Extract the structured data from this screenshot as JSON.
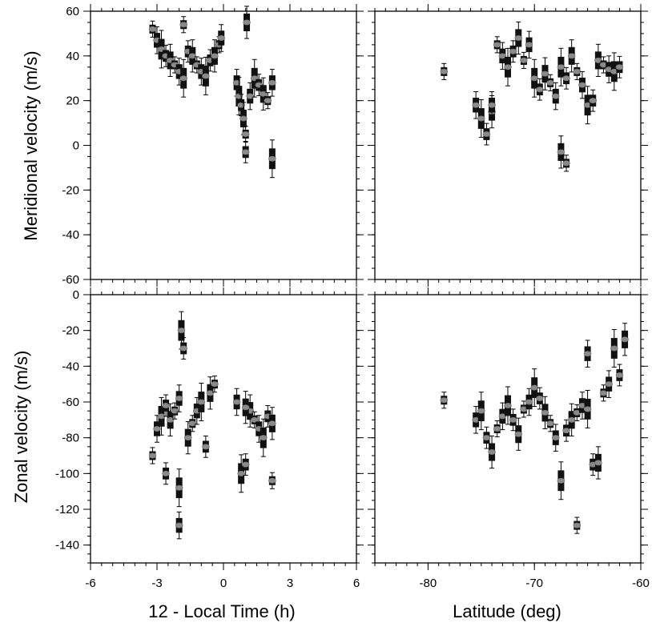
{
  "chart_data": [
    {
      "type": "scatter",
      "panel": "top-left",
      "xlabel": "",
      "ylabel": "Meridional velocity (m/s)",
      "xlim": [
        -6,
        6
      ],
      "ylim": [
        -60,
        60
      ],
      "xticks": [
        -6,
        -3,
        0,
        3,
        6
      ],
      "yticks": [
        -60,
        -40,
        -20,
        0,
        20,
        40,
        60
      ],
      "grid": false,
      "x_tick_labels_shown": false,
      "y_tick_labels_shown": true,
      "series": [
        {
          "values": [
            {
              "x": -3.2,
              "y": 52
            },
            {
              "x": -3.0,
              "y": 47
            },
            {
              "x": -2.8,
              "y": 43
            },
            {
              "x": -2.6,
              "y": 40
            },
            {
              "x": -2.4,
              "y": 38
            },
            {
              "x": -2.2,
              "y": 36
            },
            {
              "x": -2.0,
              "y": 33
            },
            {
              "x": -1.8,
              "y": 30
            },
            {
              "x": -1.6,
              "y": 42
            },
            {
              "x": -1.4,
              "y": 40
            },
            {
              "x": -1.2,
              "y": 36
            },
            {
              "x": -1.0,
              "y": 33
            },
            {
              "x": -0.8,
              "y": 31
            },
            {
              "x": -0.6,
              "y": 38
            },
            {
              "x": -0.4,
              "y": 40
            },
            {
              "x": -0.2,
              "y": 45
            },
            {
              "x": 0.6,
              "y": 28
            },
            {
              "x": 0.7,
              "y": 22
            },
            {
              "x": 0.8,
              "y": 18
            },
            {
              "x": 0.9,
              "y": 12
            },
            {
              "x": 1.0,
              "y": 5
            },
            {
              "x": 1.2,
              "y": 22
            },
            {
              "x": 1.4,
              "y": 30
            },
            {
              "x": 1.6,
              "y": 27
            },
            {
              "x": 1.8,
              "y": 23
            },
            {
              "x": 2.0,
              "y": 20
            },
            {
              "x": 2.2,
              "y": 28
            },
            {
              "x": 2.2,
              "y": -6
            },
            {
              "x": 1.0,
              "y": -3
            },
            {
              "x": 1.05,
              "y": 55
            },
            {
              "x": -1.8,
              "y": 54
            },
            {
              "x": -0.1,
              "y": 48
            }
          ]
        }
      ]
    },
    {
      "type": "scatter",
      "panel": "top-right",
      "xlabel": "",
      "ylabel": "",
      "xlim": [
        -85,
        -60
      ],
      "ylim": [
        -60,
        60
      ],
      "xticks": [
        -80,
        -70,
        -60
      ],
      "yticks": [
        -60,
        -40,
        -20,
        0,
        20,
        40,
        60
      ],
      "grid": false,
      "x_tick_labels_shown": false,
      "y_tick_labels_shown": false,
      "series": [
        {
          "values": [
            {
              "x": -78.5,
              "y": 33
            },
            {
              "x": -75.5,
              "y": 18
            },
            {
              "x": -75.0,
              "y": 12
            },
            {
              "x": -74.5,
              "y": 5
            },
            {
              "x": -74.0,
              "y": 15
            },
            {
              "x": -73.5,
              "y": 45
            },
            {
              "x": -73.0,
              "y": 40
            },
            {
              "x": -72.5,
              "y": 35
            },
            {
              "x": -72.0,
              "y": 42
            },
            {
              "x": -71.5,
              "y": 48
            },
            {
              "x": -71.0,
              "y": 38
            },
            {
              "x": -70.5,
              "y": 45
            },
            {
              "x": -70.0,
              "y": 30
            },
            {
              "x": -69.5,
              "y": 25
            },
            {
              "x": -69.0,
              "y": 32
            },
            {
              "x": -68.5,
              "y": 28
            },
            {
              "x": -68.0,
              "y": 22
            },
            {
              "x": -67.5,
              "y": 35
            },
            {
              "x": -67.0,
              "y": 30
            },
            {
              "x": -66.5,
              "y": 40
            },
            {
              "x": -66.0,
              "y": 33
            },
            {
              "x": -65.5,
              "y": 27
            },
            {
              "x": -65.0,
              "y": 18
            },
            {
              "x": -64.5,
              "y": 20
            },
            {
              "x": -64.0,
              "y": 38
            },
            {
              "x": -63.5,
              "y": 36
            },
            {
              "x": -63.0,
              "y": 34
            },
            {
              "x": -62.5,
              "y": 33
            },
            {
              "x": -62.0,
              "y": 35
            },
            {
              "x": -67.5,
              "y": -3
            },
            {
              "x": -67.0,
              "y": -8
            },
            {
              "x": -74.0,
              "y": 18
            }
          ]
        }
      ]
    },
    {
      "type": "scatter",
      "panel": "bottom-left",
      "xlabel": "12 - Local Time (h)",
      "ylabel": "Zonal velocity (m/s)",
      "xlim": [
        -6,
        6
      ],
      "ylim": [
        -150,
        0
      ],
      "xticks": [
        -6,
        -3,
        0,
        3,
        6
      ],
      "yticks": [
        -140,
        -120,
        -100,
        -80,
        -60,
        -40,
        -20,
        0
      ],
      "grid": false,
      "x_tick_labels_shown": true,
      "y_tick_labels_shown": true,
      "series": [
        {
          "values": [
            {
              "x": -3.2,
              "y": -90
            },
            {
              "x": -3.0,
              "y": -75
            },
            {
              "x": -2.8,
              "y": -68
            },
            {
              "x": -2.6,
              "y": -62
            },
            {
              "x": -2.4,
              "y": -70
            },
            {
              "x": -2.2,
              "y": -65
            },
            {
              "x": -2.0,
              "y": -58
            },
            {
              "x": -1.9,
              "y": -20
            },
            {
              "x": -1.8,
              "y": -30
            },
            {
              "x": -1.6,
              "y": -80
            },
            {
              "x": -1.4,
              "y": -72
            },
            {
              "x": -1.2,
              "y": -65
            },
            {
              "x": -1.0,
              "y": -60
            },
            {
              "x": -0.8,
              "y": -85
            },
            {
              "x": -0.6,
              "y": -55
            },
            {
              "x": -0.4,
              "y": -50
            },
            {
              "x": 0.6,
              "y": -60
            },
            {
              "x": 0.8,
              "y": -100
            },
            {
              "x": 1.0,
              "y": -95
            },
            {
              "x": 1.2,
              "y": -65
            },
            {
              "x": 1.4,
              "y": -70
            },
            {
              "x": 1.6,
              "y": -75
            },
            {
              "x": 1.8,
              "y": -80
            },
            {
              "x": 2.0,
              "y": -68
            },
            {
              "x": 2.2,
              "y": -72
            },
            {
              "x": 2.2,
              "y": -104
            },
            {
              "x": -2.0,
              "y": -129
            },
            {
              "x": -2.0,
              "y": -108
            },
            {
              "x": -2.6,
              "y": -100
            },
            {
              "x": 1.0,
              "y": -63
            }
          ]
        }
      ]
    },
    {
      "type": "scatter",
      "panel": "bottom-right",
      "xlabel": "Latitude (deg)",
      "ylabel": "",
      "xlim": [
        -85,
        -60
      ],
      "ylim": [
        -150,
        0
      ],
      "xticks": [
        -80,
        -70,
        -60
      ],
      "yticks": [
        -140,
        -120,
        -100,
        -80,
        -60,
        -40,
        -20,
        0
      ],
      "grid": false,
      "x_tick_labels_shown": true,
      "y_tick_labels_shown": false,
      "series": [
        {
          "values": [
            {
              "x": -78.5,
              "y": -59
            },
            {
              "x": -75.5,
              "y": -70
            },
            {
              "x": -75.0,
              "y": -65
            },
            {
              "x": -74.5,
              "y": -80
            },
            {
              "x": -74.0,
              "y": -88
            },
            {
              "x": -73.5,
              "y": -75
            },
            {
              "x": -73.0,
              "y": -68
            },
            {
              "x": -72.5,
              "y": -62
            },
            {
              "x": -72.0,
              "y": -70
            },
            {
              "x": -71.5,
              "y": -78
            },
            {
              "x": -71.0,
              "y": -64
            },
            {
              "x": -70.5,
              "y": -60
            },
            {
              "x": -70.0,
              "y": -52
            },
            {
              "x": -69.5,
              "y": -58
            },
            {
              "x": -69.0,
              "y": -66
            },
            {
              "x": -68.5,
              "y": -72
            },
            {
              "x": -68.0,
              "y": -80
            },
            {
              "x": -67.5,
              "y": -104
            },
            {
              "x": -67.0,
              "y": -76
            },
            {
              "x": -66.5,
              "y": -70
            },
            {
              "x": -66.0,
              "y": -66
            },
            {
              "x": -65.5,
              "y": -62
            },
            {
              "x": -65.0,
              "y": -64
            },
            {
              "x": -64.5,
              "y": -95
            },
            {
              "x": -64.0,
              "y": -94
            },
            {
              "x": -63.5,
              "y": -55
            },
            {
              "x": -63.0,
              "y": -50
            },
            {
              "x": -62.5,
              "y": -30
            },
            {
              "x": -62.0,
              "y": -45
            },
            {
              "x": -61.5,
              "y": -25
            },
            {
              "x": -66.0,
              "y": -129
            },
            {
              "x": -65.0,
              "y": -33
            }
          ]
        }
      ]
    }
  ]
}
